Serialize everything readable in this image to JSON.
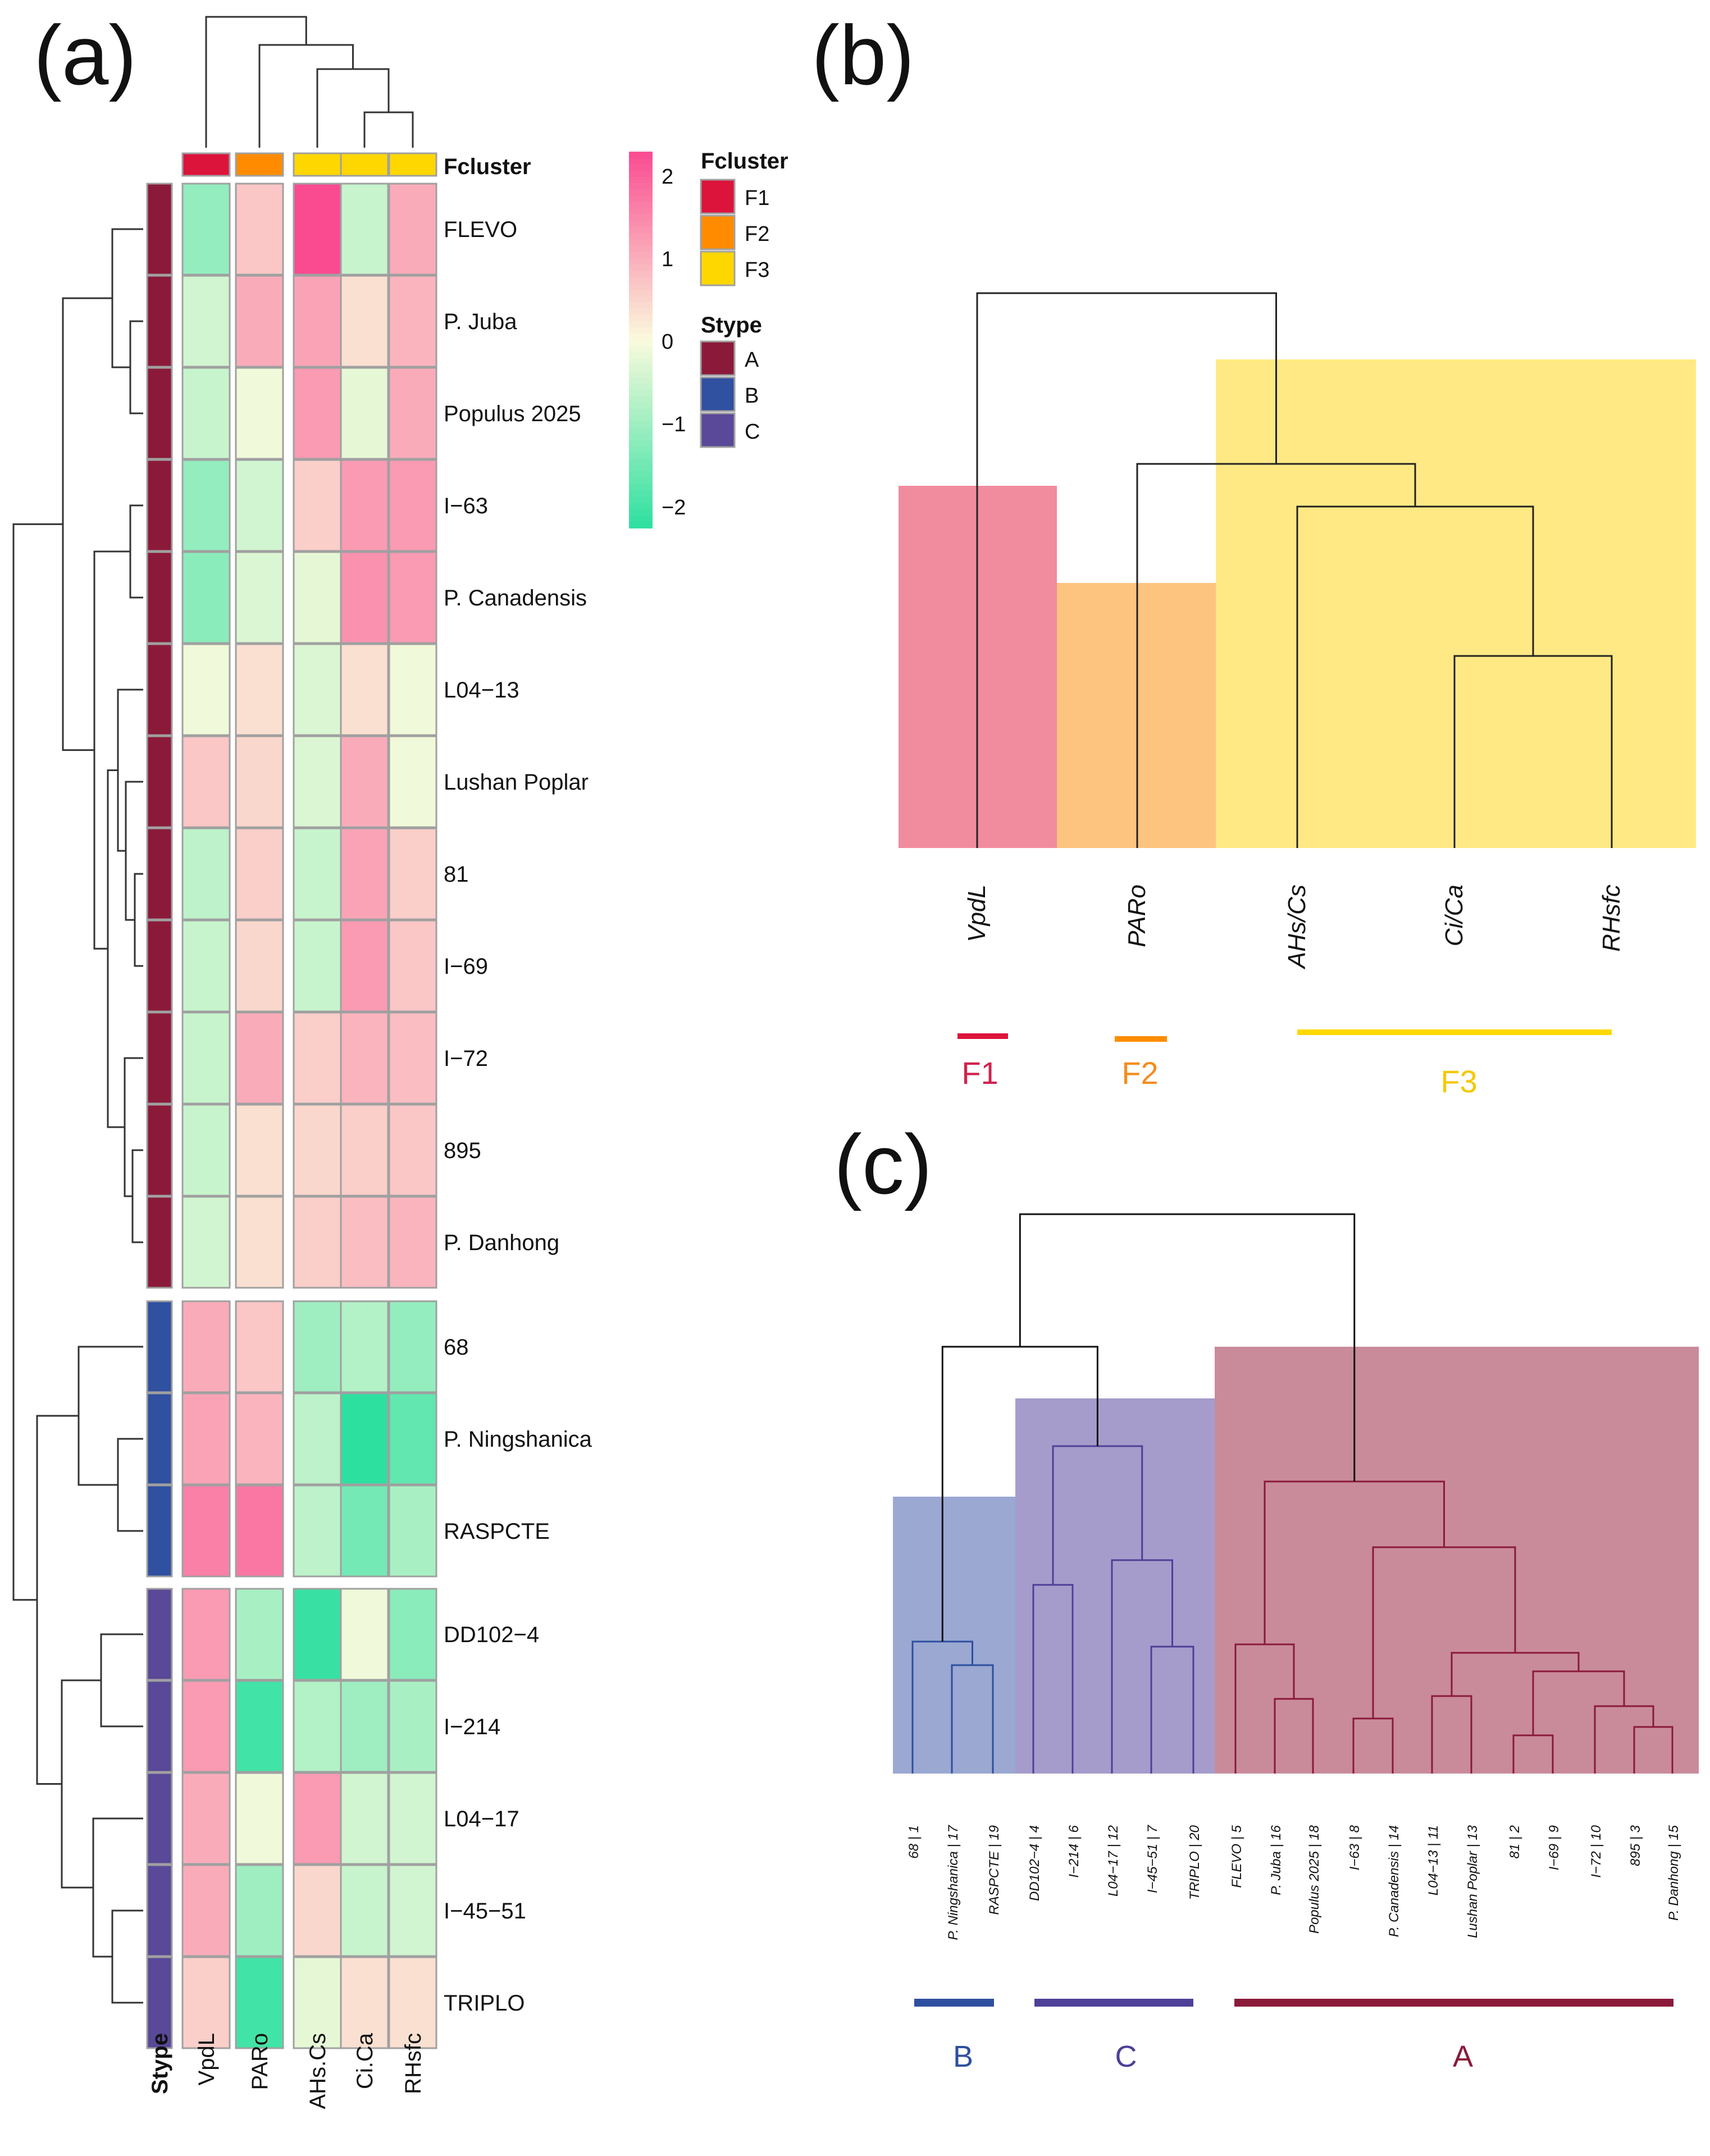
{
  "panels": {
    "a_label": "(a)",
    "b_label": "(b)",
    "c_label": "(c)"
  },
  "chart_data": [
    {
      "type": "heatmap",
      "panel": "(a)",
      "columns": [
        "VpdL",
        "PARo",
        "AHs.Cs",
        "Ci.Ca",
        "RHsfc"
      ],
      "column_clusters": [
        "F1",
        "F2",
        "F3",
        "F3",
        "F3"
      ],
      "rows": [
        "FLEVO",
        "P. Juba",
        "Populus 2025",
        "I−63",
        "P. Canadensis",
        "L04−13",
        "Lushan Poplar",
        "81",
        "I−69",
        "I−72",
        "895",
        "P. Danhong",
        "68",
        "P. Ningshanica",
        "RASPCTE",
        "DD102−4",
        "I−214",
        "L04−17",
        "I−45−51",
        "TRIPLO"
      ],
      "row_stype": [
        "A",
        "A",
        "A",
        "A",
        "A",
        "A",
        "A",
        "A",
        "A",
        "A",
        "A",
        "A",
        "B",
        "B",
        "B",
        "C",
        "C",
        "C",
        "C",
        "C"
      ],
      "values": [
        [
          -1.0,
          0.6,
          2.0,
          -0.5,
          0.9
        ],
        [
          -0.4,
          0.9,
          1.0,
          0.3,
          0.8
        ],
        [
          -0.5,
          -0.1,
          1.1,
          -0.2,
          0.9
        ],
        [
          -1.0,
          -0.4,
          0.5,
          1.1,
          1.1
        ],
        [
          -1.1,
          -0.3,
          -0.2,
          1.2,
          1.1
        ],
        [
          -0.1,
          0.3,
          -0.3,
          0.3,
          -0.1
        ],
        [
          0.6,
          0.4,
          -0.3,
          0.9,
          -0.1
        ],
        [
          -0.6,
          0.5,
          -0.5,
          1.0,
          0.5
        ],
        [
          -0.5,
          0.4,
          -0.5,
          1.1,
          0.6
        ],
        [
          -0.5,
          0.9,
          0.5,
          0.8,
          0.7
        ],
        [
          -0.5,
          0.3,
          0.4,
          0.5,
          0.6
        ],
        [
          -0.4,
          0.3,
          0.5,
          0.7,
          0.8
        ],
        [
          0.9,
          0.6,
          -0.9,
          -0.7,
          -1.0
        ],
        [
          1.0,
          0.8,
          -0.6,
          -2.0,
          -1.5
        ],
        [
          1.4,
          1.5,
          -0.6,
          -1.3,
          -0.8
        ],
        [
          1.1,
          -0.8,
          -1.9,
          -0.1,
          -1.1
        ],
        [
          1.1,
          -1.8,
          -0.7,
          -0.9,
          -0.8
        ],
        [
          0.9,
          -0.1,
          1.1,
          -0.4,
          -0.4
        ],
        [
          0.9,
          -0.9,
          0.4,
          -0.5,
          -0.4
        ],
        [
          0.5,
          -1.8,
          -0.2,
          0.3,
          0.3
        ]
      ],
      "colorbar": {
        "min": -2,
        "max": 2,
        "ticks": [
          "2",
          "1",
          "0",
          "−1",
          "−2"
        ]
      },
      "labels": {
        "fcluster": "Fcluster",
        "stype": "Stype"
      },
      "legend_fcluster": [
        {
          "name": "F1",
          "color": "#dc143c"
        },
        {
          "name": "F2",
          "color": "#ff8c00"
        },
        {
          "name": "F3",
          "color": "#ffd700"
        }
      ],
      "legend_stype": [
        {
          "name": "A",
          "color": "#8b1a3a"
        },
        {
          "name": "B",
          "color": "#3050a0"
        },
        {
          "name": "C",
          "color": "#5a4898"
        }
      ],
      "colors": {
        "low": "#2ee0a0",
        "mid": "#fafadc",
        "high": "#fa4b91"
      }
    },
    {
      "type": "dendrogram",
      "panel": "(b)",
      "leaves": [
        "VpdL",
        "PARo",
        "AHs/Cs",
        "Ci/Ca",
        "RHsfc"
      ],
      "merge_heights": {
        "CiCa_RHsfc": 0.45,
        "AHs_group": 0.8,
        "F2_F3": 0.9,
        "root": 1.3
      },
      "clusters": [
        {
          "name": "F1",
          "color": "#dc143c",
          "label_color": "#d0234d",
          "fill": "#f08c9e"
        },
        {
          "name": "F2",
          "color": "#ff8c00",
          "label_color": "#f58c1e",
          "fill": "#fcc47e"
        },
        {
          "name": "F3",
          "color": "#ffd700",
          "label_color": "#f5c800",
          "fill": "#ffe984"
        }
      ]
    },
    {
      "type": "dendrogram",
      "panel": "(c)",
      "leaves": [
        "68 | 1",
        "P. Ningshanica | 17",
        "RASPCTE | 19",
        "DD102−4 | 4",
        "I−214 | 6",
        "L04−17 | 12",
        "I−45−51 | 7",
        "TRIPLO | 20",
        "FLEVO | 5",
        "P. Juba | 16",
        "Populus 2025 | 18",
        "I−63 | 8",
        "P. Canadensis | 14",
        "L04−13 | 11",
        "Lushan Poplar | 13",
        "81 | 2",
        "I−69 | 9",
        "I−72 | 10",
        "895 | 3",
        "P. Danhong | 15"
      ],
      "clusters": [
        {
          "name": "B",
          "color": "#2e4fa0",
          "fill": "#9aa8d2"
        },
        {
          "name": "C",
          "color": "#4e3f98",
          "fill": "#a69ccb"
        },
        {
          "name": "A",
          "color": "#8b1a3a",
          "fill": "#c98b9a"
        }
      ]
    }
  ]
}
